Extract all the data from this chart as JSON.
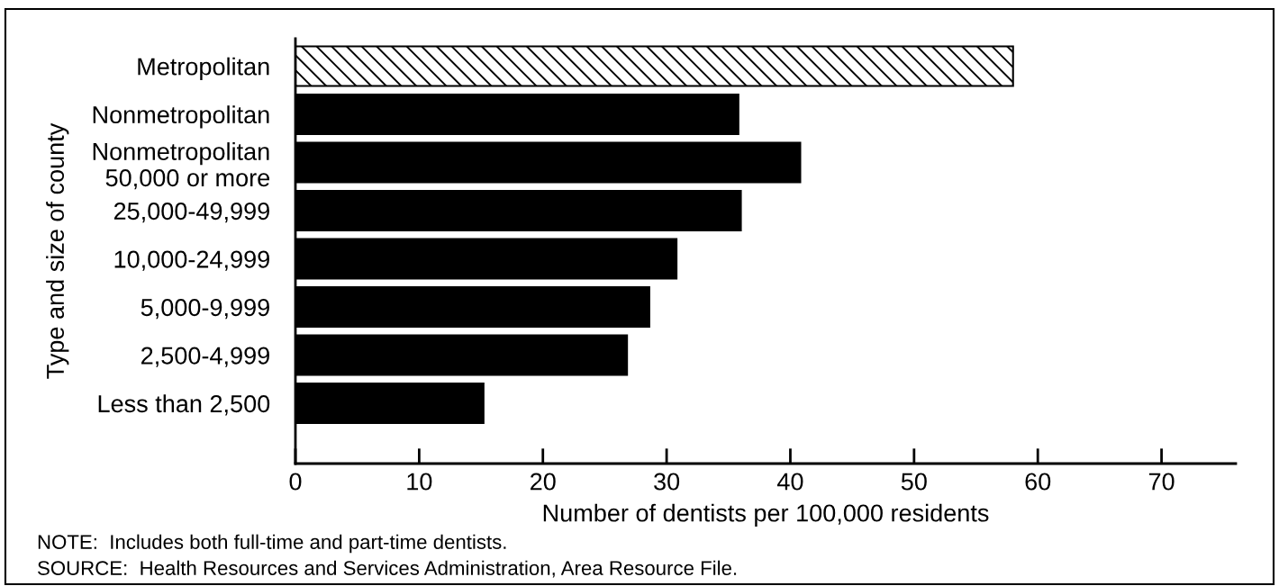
{
  "chart_data": {
    "type": "bar",
    "orientation": "horizontal",
    "ylabel": "Type and size of county",
    "xlabel": "Number of dentists per 100,000 residents",
    "categories": [
      "Metropolitan",
      "Nonmetropolitan",
      "Nonmetropolitan\n50,000 or more",
      "25,000-49,999",
      "10,000-24,999",
      "5,000-9,999",
      "2,500-4,999",
      "Less than 2,500"
    ],
    "values": [
      58.0,
      35.8,
      40.8,
      36.0,
      30.8,
      28.6,
      26.8,
      15.2
    ],
    "colors": [
      "#ffffff",
      "#000000",
      "#000000",
      "#000000",
      "#000000",
      "#000000",
      "#000000",
      "#000000"
    ],
    "xlim": [
      0,
      76
    ],
    "xticks": [
      0,
      10,
      20,
      30,
      40,
      50,
      60,
      70
    ],
    "annotations": [
      "NOTE:  Includes both full-time and part-time dentists.",
      "SOURCE:  Health Resources and Services Administration, Area Resource File."
    ]
  }
}
